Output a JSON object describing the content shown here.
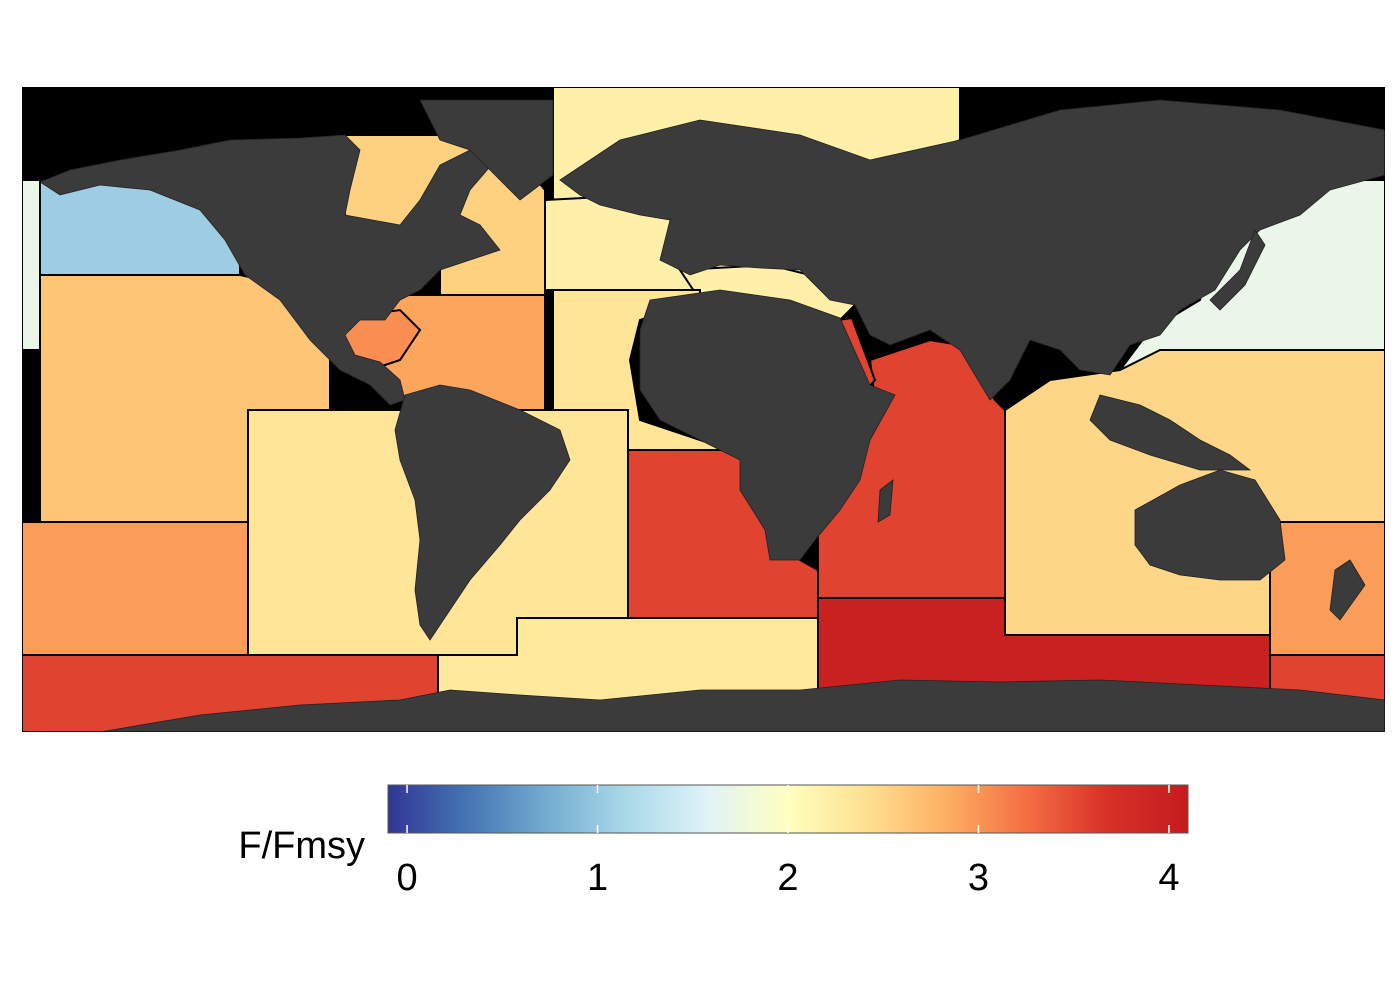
{
  "legend": {
    "title": "F/Fmsy",
    "ticks": [
      "0",
      "1",
      "2",
      "3",
      "4"
    ],
    "min": -0.1,
    "max": 4.1,
    "stops": [
      "#313695",
      "#4575b4",
      "#74add1",
      "#abd9e9",
      "#e0f3f8",
      "#ffffbf",
      "#fee090",
      "#fdae61",
      "#f46d43",
      "#d73027",
      "#c51b1e"
    ]
  },
  "regions": [
    {
      "id": "arctic-pacific-west",
      "value": 1.7
    },
    {
      "id": "arctic-atlantic",
      "value": 2.2
    },
    {
      "id": "northeast-pacific",
      "value": 1.05
    },
    {
      "id": "northwest-atlantic",
      "value": 2.55
    },
    {
      "id": "northeast-atlantic",
      "value": 2.2
    },
    {
      "id": "mediterranean",
      "value": 2.2
    },
    {
      "id": "eastern-central-pacific",
      "value": 2.65
    },
    {
      "id": "western-central-atlantic",
      "value": 2.9
    },
    {
      "id": "gulf-of-mexico",
      "value": 3.05
    },
    {
      "id": "eastern-central-atlantic",
      "value": 2.35
    },
    {
      "id": "northwest-pacific",
      "value": 1.7
    },
    {
      "id": "western-central-pacific",
      "value": 2.5
    },
    {
      "id": "western-indian-ocean",
      "value": 3.55
    },
    {
      "id": "red-sea",
      "value": 3.55
    },
    {
      "id": "eastern-indian-ocean",
      "value": 2.5
    },
    {
      "id": "southwest-atlantic",
      "value": 2.35
    },
    {
      "id": "southeast-atlantic",
      "value": 3.55
    },
    {
      "id": "southeast-pacific",
      "value": 2.95
    },
    {
      "id": "southwest-pacific",
      "value": 2.95
    },
    {
      "id": "antarctic-pacific",
      "value": 3.55
    },
    {
      "id": "antarctic-atlantic",
      "value": 2.3
    },
    {
      "id": "antarctic-indian",
      "value": 4.0
    },
    {
      "id": "antarctic-pacific-east",
      "value": 3.55
    }
  ]
}
